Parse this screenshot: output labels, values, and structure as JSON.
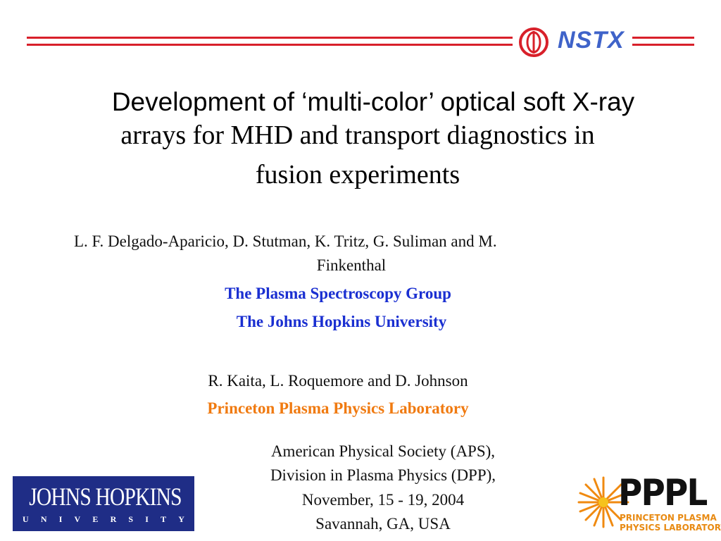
{
  "header": {
    "logo_text": "NSTX",
    "accent_color": "#d8202a",
    "logo_color": "#3f63c9"
  },
  "title": {
    "line1": "Development of ‘multi-color’ optical soft X-ray",
    "line2": "arrays for MHD and transport diagnostics in",
    "line3": "fusion experiments"
  },
  "authors_jhu": {
    "line1": "L. F. Delgado-Aparicio, D. Stutman, K. Tritz, G. Suliman and M.",
    "line2": "Finkenthal",
    "group": "The Plasma Spectroscopy Group",
    "university": "The Johns Hopkins University"
  },
  "authors_pppl": {
    "names": "R. Kaita, L. Roquemore and D. Johnson",
    "lab": "Princeton Plasma Physics Laboratory"
  },
  "conference": {
    "line1": "American Physical Society (APS),",
    "line2": "Division in Plasma Physics (DPP),",
    "line3": "November, 15 - 19, 2004",
    "line4": "Savannah, GA, USA"
  },
  "logos": {
    "jhu_name": "JOHNS HOPKINS",
    "jhu_sub_letters": [
      "U",
      "N",
      "I",
      "V",
      "E",
      "R",
      "S",
      "I",
      "T",
      "Y"
    ],
    "pppl_big": "PPPL",
    "pppl_small_line1": "PRINCETON PLASMA",
    "pppl_small_line2": "PHYSICS LABORATORY"
  }
}
